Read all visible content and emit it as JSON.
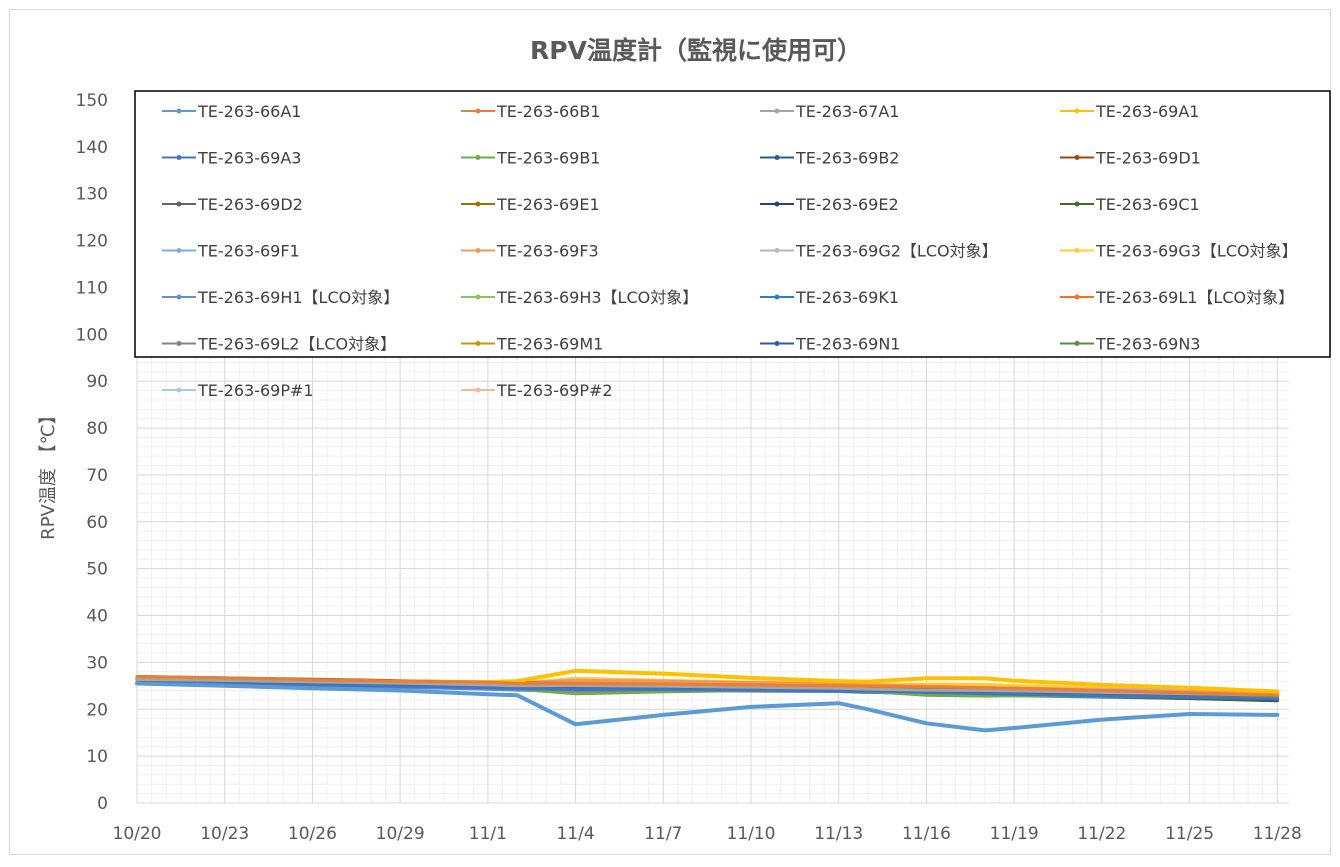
{
  "chart_data": {
    "type": "line",
    "title": "RPV温度計（監視に使用可）",
    "ylabel": "RPV温度 【℃】",
    "xlabel": "",
    "ylim": [
      0,
      150
    ],
    "yticks": [
      0,
      10,
      20,
      30,
      40,
      50,
      60,
      70,
      80,
      90,
      100,
      110,
      120,
      130,
      140,
      150
    ],
    "xlim": [
      "10/20",
      "11/28"
    ],
    "xtick_labels": [
      "10/20",
      "10/23",
      "10/26",
      "10/29",
      "11/1",
      "11/4",
      "11/7",
      "11/10",
      "11/13",
      "11/16",
      "11/19",
      "11/22",
      "11/25",
      "11/28"
    ],
    "x_dates_mm_dd": [
      "10/20",
      "10/23",
      "10/26",
      "10/29",
      "11/1",
      "11/2",
      "11/4",
      "11/7",
      "11/10",
      "11/13",
      "11/14",
      "11/16",
      "11/18",
      "11/19",
      "11/22",
      "11/25",
      "11/28"
    ],
    "grid": true,
    "legend_position": "top",
    "series": [
      {
        "name": "TE-263-66A1",
        "color": "#5b9bd5",
        "values": [
          25.5,
          25.0,
          24.5,
          24.0,
          23.2,
          23.0,
          16.8,
          18.8,
          20.5,
          21.3,
          20.0,
          17.0,
          15.5,
          16.0,
          17.8,
          19.0,
          18.8
        ]
      },
      {
        "name": "TE-263-66B1",
        "color": "#ed7d31",
        "values": [
          27.0,
          26.7,
          26.3,
          26.0,
          25.8,
          25.5,
          25.5,
          25.4,
          25.2,
          25.0,
          24.9,
          24.8,
          24.6,
          24.5,
          24.0,
          23.5,
          23.0
        ]
      },
      {
        "name": "TE-263-67A1",
        "color": "#a5a5a5",
        "values": [
          26.5,
          26.2,
          25.9,
          25.6,
          25.2,
          25.0,
          25.0,
          24.9,
          24.7,
          24.5,
          24.3,
          24.1,
          24.0,
          23.9,
          23.6,
          23.3,
          23.0
        ]
      },
      {
        "name": "TE-263-69A1",
        "color": "#ffc000",
        "values": [
          26.5,
          26.3,
          26.0,
          25.9,
          25.8,
          26.0,
          28.2,
          27.6,
          26.7,
          26.0,
          25.9,
          26.6,
          26.6,
          26.1,
          25.2,
          24.6,
          23.8
        ]
      },
      {
        "name": "TE-263-69A3",
        "color": "#4472c4",
        "values": [
          25.8,
          25.5,
          25.2,
          24.9,
          24.6,
          24.4,
          24.2,
          24.2,
          24.1,
          24.0,
          23.9,
          23.6,
          23.3,
          23.2,
          22.9,
          22.6,
          22.2
        ]
      },
      {
        "name": "TE-263-69B1",
        "color": "#70ad47",
        "values": [
          26.0,
          25.7,
          25.4,
          25.1,
          24.7,
          24.3,
          23.3,
          23.7,
          24.0,
          24.2,
          23.8,
          23.0,
          22.8,
          22.9,
          22.8,
          22.6,
          22.3
        ]
      },
      {
        "name": "TE-263-69B2",
        "color": "#255e91",
        "values": [
          26.3,
          26.0,
          25.7,
          25.4,
          25.0,
          24.8,
          24.6,
          24.5,
          24.4,
          24.2,
          24.0,
          23.8,
          23.6,
          23.5,
          23.1,
          22.7,
          22.3
        ]
      },
      {
        "name": "TE-263-69D1",
        "color": "#9e480e",
        "values": [
          27.0,
          26.7,
          26.4,
          26.1,
          25.8,
          25.6,
          25.5,
          25.3,
          25.1,
          24.9,
          24.8,
          24.6,
          24.4,
          24.3,
          23.8,
          23.3,
          22.9
        ]
      },
      {
        "name": "TE-263-69D2",
        "color": "#636363",
        "values": [
          26.8,
          26.5,
          26.2,
          25.9,
          25.6,
          25.4,
          25.3,
          25.1,
          24.9,
          24.7,
          24.6,
          24.4,
          24.2,
          24.1,
          23.6,
          23.1,
          22.7
        ]
      },
      {
        "name": "TE-263-69E1",
        "color": "#997300",
        "values": [
          26.6,
          26.3,
          26.0,
          25.7,
          25.4,
          25.2,
          25.1,
          24.9,
          24.7,
          24.5,
          24.4,
          24.2,
          24.0,
          23.9,
          23.4,
          22.9,
          22.5
        ]
      },
      {
        "name": "TE-263-69E2",
        "color": "#264478",
        "values": [
          26.4,
          26.1,
          25.8,
          25.5,
          25.2,
          25.0,
          25.0,
          24.9,
          24.8,
          24.7,
          24.6,
          24.5,
          24.4,
          24.3,
          23.6,
          22.8,
          22.0
        ]
      },
      {
        "name": "TE-263-69C1",
        "color": "#43682b",
        "values": [
          26.2,
          25.9,
          25.6,
          25.3,
          24.9,
          24.6,
          24.2,
          24.2,
          24.1,
          24.0,
          23.8,
          23.5,
          23.2,
          23.1,
          22.8,
          22.3,
          21.8
        ]
      },
      {
        "name": "TE-263-69F1",
        "color": "#7cafdd",
        "values": [
          25.9,
          25.6,
          25.3,
          25.0,
          24.7,
          24.5,
          24.4,
          24.3,
          24.2,
          24.1,
          23.9,
          23.6,
          23.3,
          23.2,
          22.8,
          22.4,
          22.0
        ]
      },
      {
        "name": "TE-263-69F3",
        "color": "#f1975a",
        "values": [
          26.9,
          26.6,
          26.3,
          26.0,
          25.7,
          25.6,
          26.2,
          26.0,
          25.7,
          25.4,
          25.2,
          24.9,
          24.6,
          24.5,
          24.1,
          23.7,
          23.3
        ]
      },
      {
        "name": "TE-263-69G2【LCO対象】",
        "color": "#b7b7b7",
        "values": [
          26.5,
          26.2,
          25.9,
          25.7,
          25.5,
          25.4,
          25.8,
          25.6,
          25.3,
          25.0,
          24.9,
          24.8,
          24.6,
          24.5,
          24.3,
          24.0,
          23.7
        ]
      },
      {
        "name": "TE-263-69G3【LCO対象】",
        "color": "#ffcd33",
        "values": [
          26.3,
          26.0,
          25.8,
          25.6,
          25.4,
          25.5,
          26.6,
          26.2,
          25.8,
          25.4,
          25.3,
          25.4,
          25.3,
          25.1,
          24.6,
          24.1,
          23.6
        ]
      },
      {
        "name": "TE-263-69H1【LCO対象】",
        "color": "#698ed0",
        "values": [
          25.7,
          25.4,
          25.1,
          24.8,
          24.4,
          24.2,
          24.0,
          24.0,
          24.0,
          23.9,
          23.8,
          23.5,
          23.2,
          23.1,
          22.8,
          22.4,
          22.0
        ]
      },
      {
        "name": "TE-263-69H3【LCO対象】",
        "color": "#8cc168",
        "values": [
          25.8,
          25.5,
          25.2,
          24.9,
          24.5,
          24.2,
          23.6,
          23.8,
          24.0,
          24.1,
          23.8,
          23.2,
          23.0,
          23.0,
          22.9,
          22.7,
          22.5
        ]
      },
      {
        "name": "TE-263-69K1",
        "color": "#327dc2",
        "values": [
          25.6,
          25.3,
          25.0,
          24.7,
          24.3,
          24.1,
          23.8,
          23.9,
          23.9,
          23.8,
          23.6,
          23.3,
          23.0,
          22.9,
          22.6,
          22.3,
          22.0
        ]
      },
      {
        "name": "TE-263-69L1【LCO対象】",
        "color": "#f07427",
        "values": [
          26.4,
          26.1,
          25.8,
          25.5,
          25.2,
          25.1,
          25.2,
          25.0,
          24.8,
          24.6,
          24.5,
          24.3,
          24.1,
          24.0,
          23.7,
          23.3,
          23.0
        ]
      },
      {
        "name": "TE-263-69L2【LCO対象】",
        "color": "#848484",
        "values": [
          26.3,
          26.0,
          25.7,
          25.4,
          25.1,
          24.9,
          24.8,
          24.7,
          24.5,
          24.3,
          24.2,
          24.0,
          23.8,
          23.7,
          23.3,
          22.9,
          22.5
        ]
      },
      {
        "name": "TE-263-69M1",
        "color": "#cc9a00",
        "values": [
          26.2,
          25.9,
          25.6,
          25.3,
          25.0,
          24.8,
          24.8,
          24.7,
          24.5,
          24.3,
          24.2,
          24.0,
          23.8,
          23.7,
          23.3,
          22.9,
          22.6
        ]
      },
      {
        "name": "TE-263-69N1",
        "color": "#335aa1",
        "values": [
          26.1,
          25.8,
          25.5,
          25.2,
          24.9,
          24.7,
          24.8,
          24.8,
          24.7,
          24.5,
          24.4,
          24.4,
          24.3,
          24.1,
          23.5,
          22.9,
          22.3
        ]
      },
      {
        "name": "TE-263-69N3",
        "color": "#5b8c3a",
        "values": [
          25.9,
          25.6,
          25.3,
          25.0,
          24.6,
          24.3,
          24.0,
          24.0,
          24.0,
          23.9,
          23.7,
          23.4,
          23.1,
          23.0,
          22.7,
          22.3,
          21.9
        ]
      },
      {
        "name": "TE-263-69P#1",
        "color": "#a8c9ea",
        "values": [
          26.0,
          25.8,
          25.6,
          25.4,
          25.2,
          25.1,
          25.5,
          25.3,
          25.1,
          24.9,
          24.8,
          24.7,
          24.6,
          24.5,
          24.3,
          24.0,
          23.7
        ]
      },
      {
        "name": "TE-263-69P#2",
        "color": "#f6b990",
        "values": [
          26.6,
          26.3,
          26.0,
          25.8,
          25.6,
          25.5,
          26.3,
          26.1,
          25.8,
          25.5,
          25.3,
          25.1,
          24.8,
          24.7,
          24.4,
          24.1,
          23.7
        ]
      }
    ]
  }
}
